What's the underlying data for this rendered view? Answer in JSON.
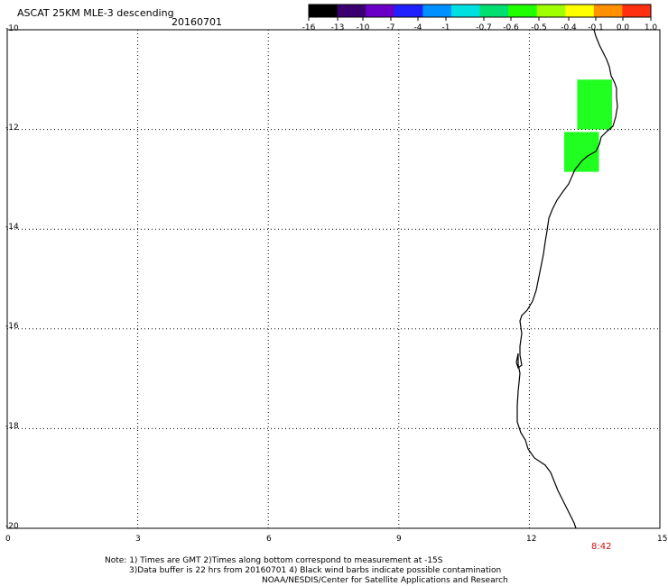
{
  "header": {
    "title": "ASCAT 25KM MLE-3 descending",
    "date": "20160701"
  },
  "colorbar": {
    "labels": [
      "-16",
      "-13",
      "-10",
      "-7",
      "-4",
      "-1",
      "-0.7",
      "-0.6",
      "-0.5",
      "-0.4",
      "-0.1",
      "0.0",
      "1.0"
    ],
    "colors": [
      "#000000",
      "#3a0070",
      "#6a00c8",
      "#2020ff",
      "#0090ff",
      "#00e0e0",
      "#00e070",
      "#20ff00",
      "#a0ff00",
      "#ffff00",
      "#ff9000",
      "#ff3010"
    ]
  },
  "axes": {
    "x_ticks": [
      "0",
      "3",
      "6",
      "9",
      "12",
      "15"
    ],
    "y_ticks": [
      "-10",
      "-12",
      "-14",
      "-16",
      "-18",
      "-20"
    ]
  },
  "map": {
    "lon_range": [
      0,
      15
    ],
    "lat_range": [
      -20,
      -10
    ],
    "grid": true,
    "grid_style": "dotted",
    "coastline_color": "#000000",
    "cell_color": "#20ff20",
    "cells": [
      {
        "lon0": 13.1,
        "lon1": 13.9,
        "lat0": -12.0,
        "lat1": -11.0
      },
      {
        "lon0": 12.8,
        "lon1": 13.6,
        "lat0": -12.85,
        "lat1": -12.05
      }
    ]
  },
  "footer": {
    "time_label": "8:42",
    "note_line1": "Note: 1) Times are GMT 2)Times along bottom correspond to measurement at -15S",
    "note_line2": "3)Data buffer is 22 hrs from 20160701 4) Black wind barbs indicate possible contamination",
    "note_line3": "NOAA/NESDIS/Center for Satellite Applications and Research"
  }
}
